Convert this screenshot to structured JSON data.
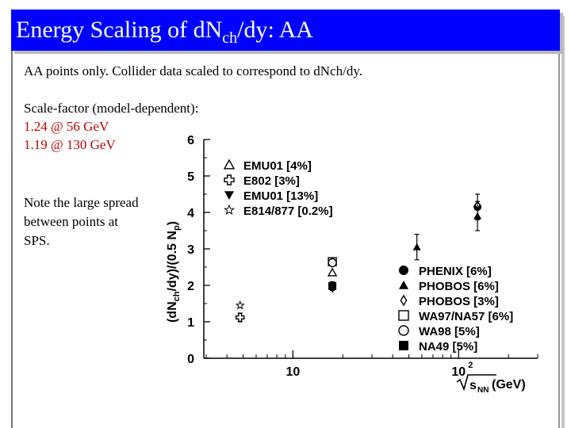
{
  "slide": {
    "title_main": "Energy Scaling of dN",
    "title_sub": "ch",
    "title_tail": "/dy: AA",
    "line1": "AA points only. Collider data scaled to correspond to dNch/dy.",
    "scale_heading": "Scale-factor (model-dependent):",
    "scale1": "1.24 @ 56 GeV",
    "scale2": "1.19 @ 130 GeV",
    "note1": "Note the large spread",
    "note2": "between points at",
    "note3": "SPS.",
    "accent_color": "#0000ff",
    "highlight_color": "#c00000"
  },
  "chart_data": {
    "type": "scatter",
    "x_scale": "log",
    "xlim": [
      2.9,
      300
    ],
    "ylim": [
      0,
      6
    ],
    "ylabel_main": "(dN",
    "ylabel_sub1": "ch",
    "ylabel_mid": "/dy)/(0.5 N",
    "ylabel_sub2": "p",
    "ylabel_tail": ")",
    "xlabel_main": "s",
    "xlabel_sub": "NN",
    "xlabel_tail": "(GeV)",
    "x_ticks": [
      {
        "value": 10,
        "label": "10",
        "sup": ""
      },
      {
        "value": 100,
        "label": "10",
        "sup": "2"
      }
    ],
    "y_ticks": [
      0,
      1,
      2,
      3,
      4,
      5,
      6
    ],
    "legend1": [
      {
        "label": "EMU01 [4%]",
        "marker": "triangle-open"
      },
      {
        "label": "E802 [3%]",
        "marker": "cross-open"
      },
      {
        "label": "EMU01 [13%]",
        "marker": "triangle-down"
      },
      {
        "label": "E814/877 [0.2%]",
        "marker": "star"
      }
    ],
    "legend2": [
      {
        "label": "PHENIX [6%]",
        "marker": "circle"
      },
      {
        "label": "PHOBOS [6%]",
        "marker": "triangle"
      },
      {
        "label": "PHOBOS [3%]",
        "marker": "diamond-open"
      },
      {
        "label": "WA97/NA57 [6%]",
        "marker": "square-open"
      },
      {
        "label": "WA98 [5%]",
        "marker": "circle-open"
      },
      {
        "label": "NA49 [5%]",
        "marker": "square"
      }
    ],
    "points": [
      {
        "series": "E814/877 [0.2%]",
        "marker": "star",
        "x": 4.8,
        "y": 1.45,
        "err": 0
      },
      {
        "series": "E802 [3%]",
        "marker": "cross-open",
        "x": 4.8,
        "y": 1.12,
        "err": 0.12
      },
      {
        "series": "WA97/NA57 [6%]",
        "marker": "square-open",
        "x": 17.3,
        "y": 2.65,
        "err": 0
      },
      {
        "series": "WA98 [5%]",
        "marker": "circle-open",
        "x": 17.3,
        "y": 2.62,
        "err": 0
      },
      {
        "series": "EMU01 [4%]",
        "marker": "triangle-open",
        "x": 17.3,
        "y": 2.35,
        "err": 0
      },
      {
        "series": "NA49 [5%]",
        "marker": "square",
        "x": 17.3,
        "y": 1.98,
        "err": 0.12
      },
      {
        "series": "EMU01 [13%]",
        "marker": "triangle-down",
        "x": 17.3,
        "y": 1.9,
        "err": 0
      },
      {
        "series": "PHOBOS [6%]",
        "marker": "triangle",
        "x": 56,
        "y": 3.05,
        "err": 0.35
      },
      {
        "series": "PHENIX [6%]",
        "marker": "circle",
        "x": 130,
        "y": 4.15,
        "err": 0.35
      },
      {
        "series": "PHOBOS [3%]",
        "marker": "diamond-open",
        "x": 130,
        "y": 4.2,
        "err": 0
      },
      {
        "series": "PHOBOS [6%]",
        "marker": "triangle",
        "x": 130,
        "y": 3.9,
        "err": 0.4
      }
    ]
  }
}
